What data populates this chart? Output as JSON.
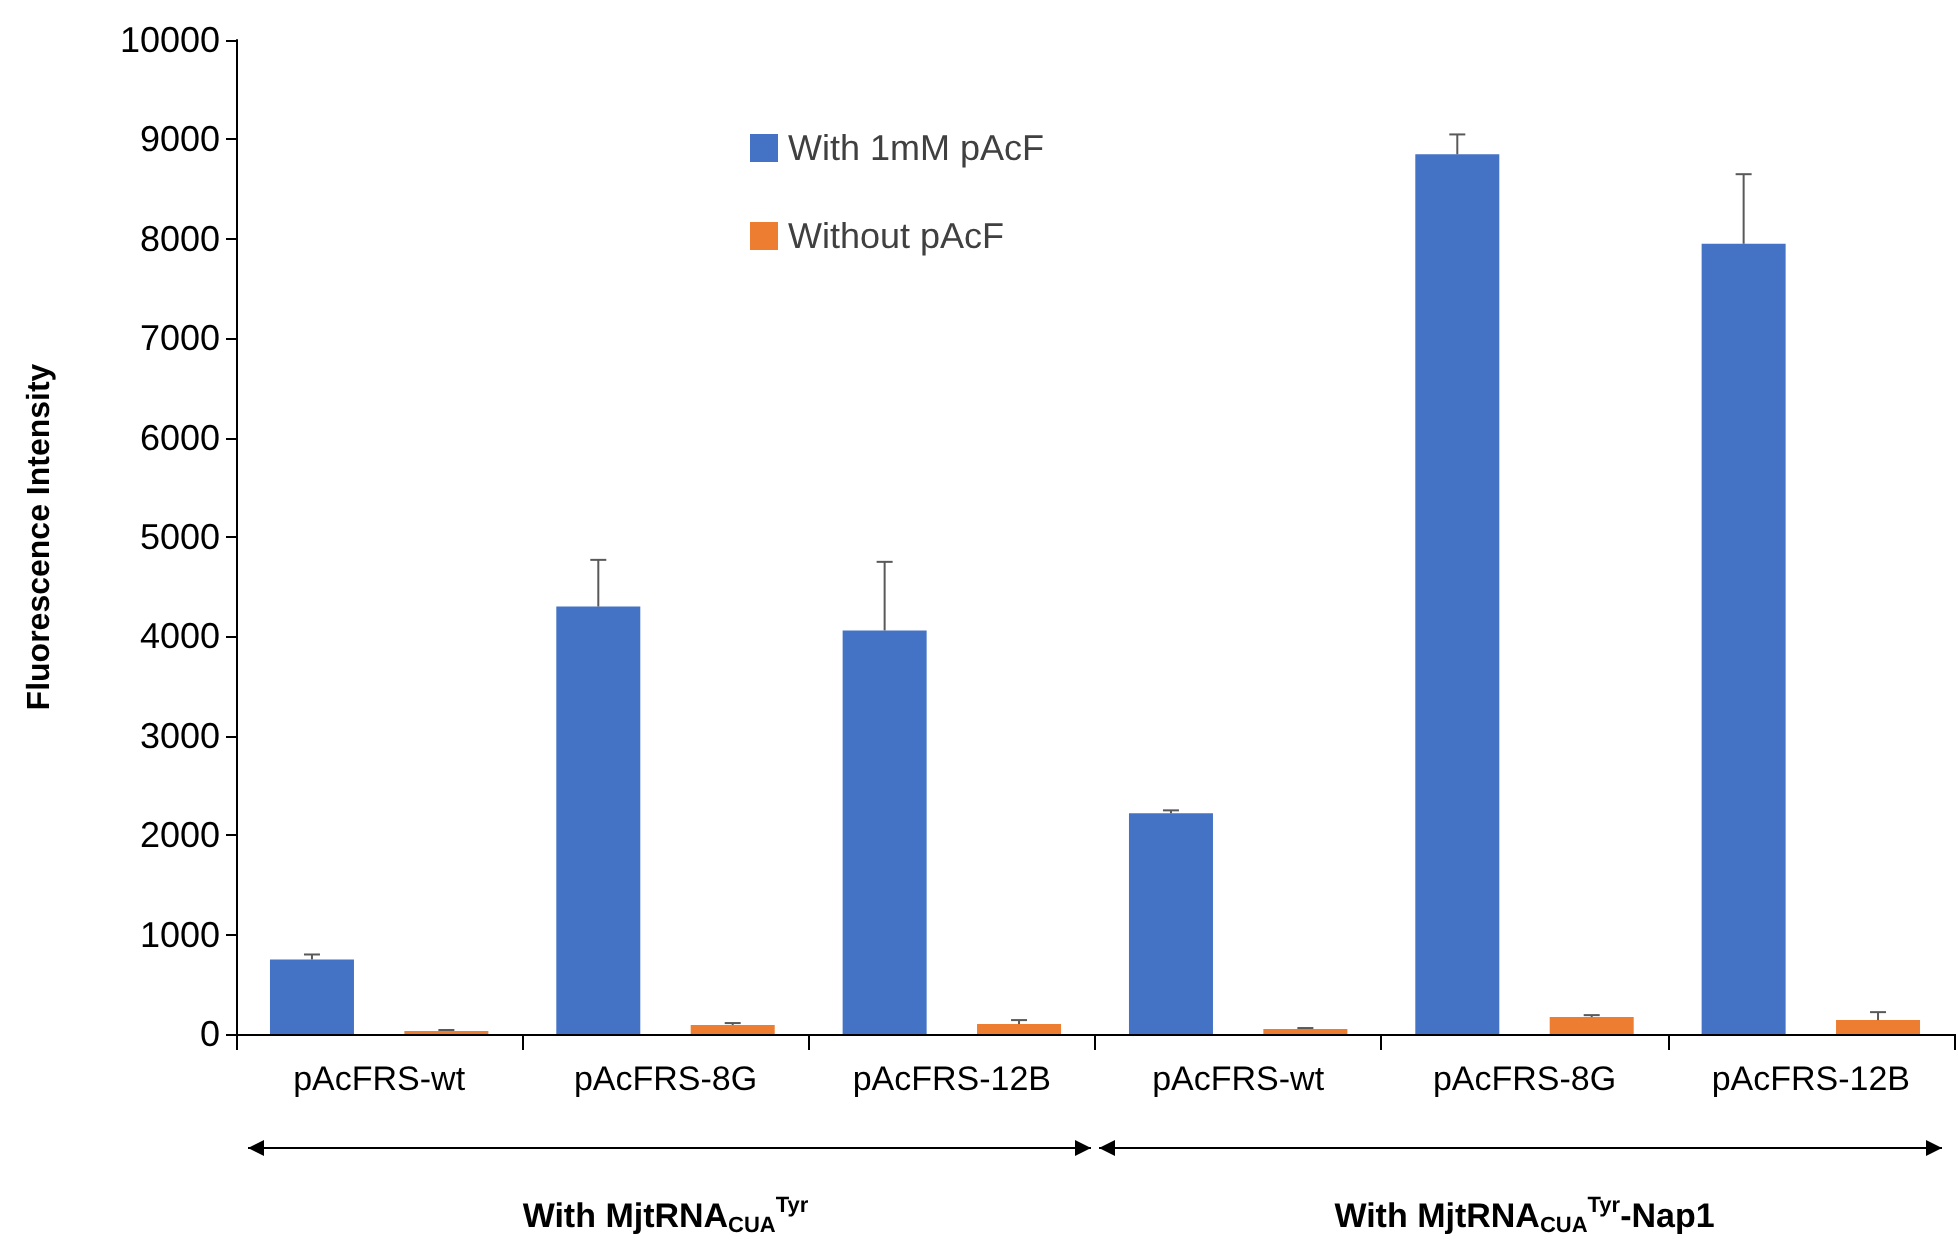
{
  "chart_data": {
    "type": "bar",
    "ylabel": "Fluorescence Intensity",
    "categories": [
      "pAcFRS-wt",
      "pAcFRS-8G",
      "pAcFRS-12B",
      "pAcFRS-wt",
      "pAcFRS-8G",
      "pAcFRS-12B"
    ],
    "series": [
      {
        "name": "With 1mM pAcF",
        "color": "#4472c4",
        "values": [
          750,
          4300,
          4060,
          2220,
          8850,
          7950
        ],
        "errors": [
          [
            750,
            800
          ],
          [
            4300,
            4770
          ],
          [
            4060,
            4750
          ],
          [
            2220,
            2250
          ],
          [
            8850,
            9050
          ],
          [
            7950,
            8650
          ]
        ]
      },
      {
        "name": "Without pAcF",
        "color": "#ed7d31",
        "values": [
          30,
          90,
          100,
          50,
          170,
          140
        ],
        "errors": [
          [
            30,
            40
          ],
          [
            90,
            110
          ],
          [
            100,
            140
          ],
          [
            50,
            60
          ],
          [
            170,
            190
          ],
          [
            140,
            220
          ]
        ]
      }
    ],
    "ylim": [
      0,
      10000
    ],
    "yticks": [
      0,
      1000,
      2000,
      3000,
      4000,
      5000,
      6000,
      7000,
      8000,
      9000,
      10000
    ],
    "grid": false,
    "legend": "top",
    "annotations": [
      "With MjtRNA$_{CUA}$$^{Tyr}$",
      "With MjtRNA$_{CUA}$$^{Tyr}$-Nap1"
    ]
  }
}
